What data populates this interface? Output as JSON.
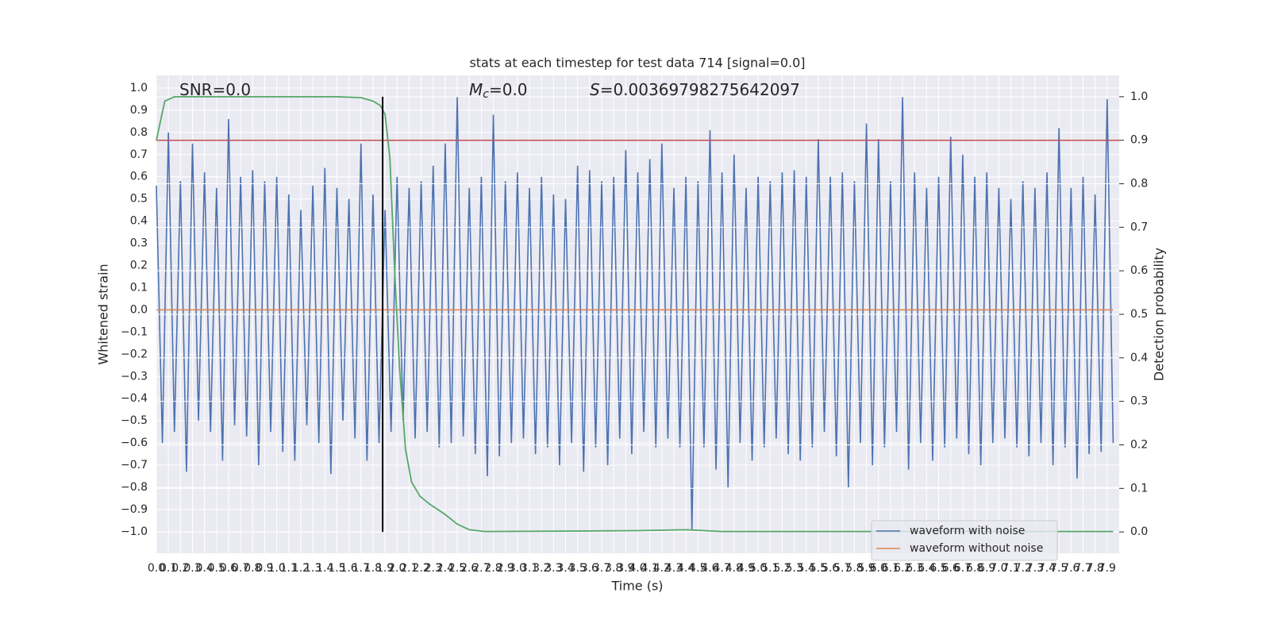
{
  "chart_data": {
    "type": "line",
    "title": "stats at each timestep for test data 714 [signal=0.0]",
    "x_label": "Time (s)",
    "y_label": "Whitened strain",
    "y2_label": "Detection probability",
    "grid": true,
    "legend": "lower right",
    "annotations": [
      {
        "main": "SNR=0.0"
      },
      {
        "main": "M",
        "sub": "c",
        "rest": "=0.0"
      },
      {
        "main": "S",
        "rest": "=0.00369798275642097"
      }
    ],
    "xlim": [
      0,
      8.0
    ],
    "ylim": [
      -1.097,
      1.057
    ],
    "y2lim": [
      -0.049,
      1.049
    ],
    "xticks": [
      {
        "value": 0,
        "label": "0.0"
      },
      0.1,
      0.2,
      0.3,
      0.4,
      0.5,
      0.6,
      0.7,
      0.8,
      0.9,
      {
        "value": 1,
        "label": "1.0"
      },
      1.1,
      1.2,
      1.3,
      1.4,
      1.5,
      1.6,
      1.7,
      1.8,
      1.9,
      {
        "value": 2,
        "label": "2.0"
      },
      2.1,
      2.2,
      2.3,
      2.4,
      2.5,
      2.6,
      2.7,
      2.8,
      2.9,
      {
        "value": 3,
        "label": "3.0"
      },
      3.1,
      3.2,
      3.3,
      3.4,
      3.5,
      3.6,
      3.7,
      3.8,
      3.9,
      {
        "value": 4,
        "label": "4.0"
      },
      4.1,
      4.2,
      4.3,
      4.4,
      4.5,
      4.6,
      4.7,
      4.8,
      4.9,
      {
        "value": 5,
        "label": "5.0"
      },
      5.1,
      5.2,
      5.3,
      5.4,
      5.5,
      5.6,
      5.7,
      5.8,
      5.9,
      {
        "value": 6,
        "label": "6.0"
      },
      6.1,
      6.2,
      6.3,
      6.4,
      6.5,
      6.6,
      6.7,
      6.8,
      6.9,
      {
        "value": 7,
        "label": "7.0"
      },
      7.1,
      7.2,
      7.3,
      7.4,
      7.5,
      7.6,
      7.7,
      7.8,
      7.9
    ],
    "yticks": [
      {
        "value": -1,
        "label": "−1.0"
      },
      {
        "value": -0.9,
        "label": "−0.9"
      },
      {
        "value": -0.8,
        "label": "−0.8"
      },
      {
        "value": -0.7,
        "label": "−0.7"
      },
      {
        "value": -0.6,
        "label": "−0.6"
      },
      {
        "value": -0.5,
        "label": "−0.5"
      },
      {
        "value": -0.4,
        "label": "−0.4"
      },
      {
        "value": -0.3,
        "label": "−0.3"
      },
      {
        "value": -0.2,
        "label": "−0.2"
      },
      {
        "value": -0.1,
        "label": "−0.1"
      },
      {
        "value": 0,
        "label": "0.0"
      },
      0.1,
      0.2,
      0.3,
      0.4,
      0.5,
      0.6,
      0.7,
      0.8,
      0.9,
      {
        "value": 1,
        "label": "1.0"
      }
    ],
    "y2ticks": [
      {
        "value": 0,
        "label": "0.0"
      },
      0.1,
      0.2,
      0.3,
      0.4,
      0.5,
      0.6,
      0.7,
      0.8,
      0.9,
      {
        "value": 1,
        "label": "1.0"
      }
    ],
    "series": [
      {
        "name": "waveform with noise",
        "color": "#4c72b0",
        "x": [
          0,
          0.05,
          0.1,
          0.15,
          0.2,
          0.25,
          0.3,
          0.35,
          0.4,
          0.45,
          0.5,
          0.55,
          0.6,
          0.65,
          0.7,
          0.75,
          0.8,
          0.85,
          0.9,
          0.95,
          1,
          1.05,
          1.1,
          1.15,
          1.2,
          1.25,
          1.3,
          1.35,
          1.4,
          1.45,
          1.5,
          1.55,
          1.6,
          1.65,
          1.7,
          1.75,
          1.8,
          1.85,
          1.9,
          1.95,
          2,
          2.05,
          2.1,
          2.15,
          2.2,
          2.25,
          2.3,
          2.35,
          2.4,
          2.45,
          2.5,
          2.55,
          2.6,
          2.65,
          2.7,
          2.75,
          2.8,
          2.85,
          2.9,
          2.95,
          3,
          3.05,
          3.1,
          3.15,
          3.2,
          3.25,
          3.3,
          3.35,
          3.4,
          3.45,
          3.5,
          3.55,
          3.6,
          3.65,
          3.7,
          3.75,
          3.8,
          3.85,
          3.9,
          3.95,
          4,
          4.05,
          4.1,
          4.15,
          4.2,
          4.25,
          4.3,
          4.35,
          4.4,
          4.45,
          4.5,
          4.55,
          4.6,
          4.65,
          4.7,
          4.75,
          4.8,
          4.85,
          4.9,
          4.95,
          5,
          5.05,
          5.1,
          5.15,
          5.2,
          5.25,
          5.3,
          5.35,
          5.4,
          5.45,
          5.5,
          5.55,
          5.6,
          5.65,
          5.7,
          5.75,
          5.8,
          5.85,
          5.9,
          5.95,
          6,
          6.05,
          6.1,
          6.15,
          6.2,
          6.25,
          6.3,
          6.35,
          6.4,
          6.45,
          6.5,
          6.55,
          6.6,
          6.65,
          6.7,
          6.75,
          6.8,
          6.85,
          6.9,
          6.95,
          7,
          7.05,
          7.1,
          7.15,
          7.2,
          7.25,
          7.3,
          7.35,
          7.4,
          7.45,
          7.5,
          7.55,
          7.6,
          7.65,
          7.7,
          7.75,
          7.8,
          7.85,
          7.9,
          7.95
        ],
        "values": [
          0.56,
          -0.6,
          0.8,
          -0.55,
          0.58,
          -0.73,
          0.75,
          -0.5,
          0.62,
          -0.55,
          0.55,
          -0.68,
          0.86,
          -0.52,
          0.6,
          -0.57,
          0.63,
          -0.7,
          0.58,
          -0.55,
          0.6,
          -0.64,
          0.52,
          -0.68,
          0.45,
          -0.52,
          0.56,
          -0.6,
          0.64,
          -0.74,
          0.55,
          -0.5,
          0.5,
          -0.58,
          0.75,
          -0.68,
          0.52,
          -0.6,
          0.45,
          -0.55,
          0.6,
          -0.5,
          0.55,
          -0.58,
          0.58,
          -0.55,
          0.65,
          -0.62,
          0.75,
          -0.6,
          0.96,
          -0.57,
          0.55,
          -0.65,
          0.6,
          -0.75,
          0.88,
          -0.66,
          0.58,
          -0.6,
          0.62,
          -0.58,
          0.55,
          -0.65,
          0.6,
          -0.62,
          0.52,
          -0.7,
          0.5,
          -0.6,
          0.65,
          -0.73,
          0.63,
          -0.62,
          0.58,
          -0.7,
          0.6,
          -0.58,
          0.72,
          -0.65,
          0.62,
          -0.55,
          0.68,
          -0.62,
          0.75,
          -0.58,
          0.55,
          -0.62,
          0.6,
          -0.99,
          0.58,
          -0.62,
          0.81,
          -0.72,
          0.62,
          -0.8,
          0.7,
          -0.6,
          0.55,
          -0.68,
          0.6,
          -0.62,
          0.58,
          -0.58,
          0.62,
          -0.65,
          0.63,
          -0.68,
          0.6,
          -0.62,
          0.77,
          -0.55,
          0.6,
          -0.66,
          0.62,
          -0.8,
          0.58,
          -0.6,
          0.84,
          -0.7,
          0.77,
          -0.62,
          0.58,
          -0.55,
          0.96,
          -0.72,
          0.62,
          -0.6,
          0.55,
          -0.68,
          0.6,
          -0.62,
          0.78,
          -0.58,
          0.7,
          -0.65,
          0.6,
          -0.7,
          0.62,
          -0.6,
          0.55,
          -0.58,
          0.5,
          -0.62,
          0.58,
          -0.66,
          0.55,
          -0.6,
          0.62,
          -0.7,
          0.82,
          -0.62,
          0.55,
          -0.76,
          0.6,
          -0.65,
          0.52,
          -0.64,
          0.95,
          -0.6
        ]
      },
      {
        "name": "waveform without noise",
        "color": "#dd8452",
        "x": [
          0,
          7.95
        ],
        "values": [
          0,
          0
        ]
      }
    ],
    "detection_probability": {
      "color": "#55a868",
      "axis": "y2",
      "x": [
        0,
        0.07,
        0.15,
        0.5,
        1.0,
        1.5,
        1.7,
        1.8,
        1.86,
        1.9,
        1.94,
        1.98,
        2.02,
        2.07,
        2.12,
        2.19,
        2.27,
        2.39,
        2.5,
        2.6,
        2.73,
        3.5,
        4.0,
        4.4,
        4.7,
        5.5,
        7.95
      ],
      "values": [
        0.9,
        0.99,
        1.0,
        1.0,
        1.0,
        1.0,
        0.998,
        0.99,
        0.98,
        0.96,
        0.86,
        0.6,
        0.38,
        0.19,
        0.115,
        0.082,
        0.064,
        0.042,
        0.018,
        0.005,
        0.001,
        0.002,
        0.003,
        0.005,
        0.001,
        0.001,
        0.001
      ]
    },
    "threshold": {
      "y": 0.9,
      "axis": "y2",
      "color": "#c44e52"
    },
    "marker": {
      "x": 1.88,
      "ymin": 0,
      "ymax": 1,
      "axis": "y2",
      "color": "#000000"
    }
  }
}
